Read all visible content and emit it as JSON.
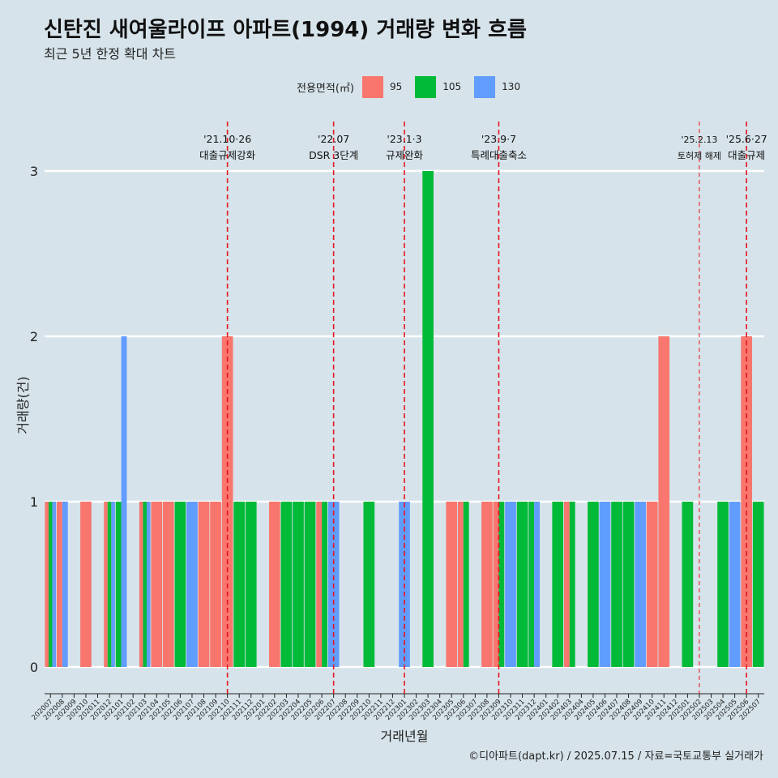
{
  "chart_data": {
    "type": "bar",
    "title": "신탄진 새여울라이프 아파트(1994) 거래량 변화 흐름",
    "subtitle": "최근 5년 한정 확대 차트",
    "xlabel": "거래년월",
    "ylabel": "거래량(건)",
    "caption": "©디아파트(dapt.kr) / 2025.07.15 / 자료=국토교통부 실거래가",
    "legend_title": "전용면적(㎡)",
    "legend_position": "top",
    "grid": true,
    "ylim": [
      0,
      3
    ],
    "yticks": [
      0,
      1,
      2,
      3
    ],
    "categories": [
      "202007",
      "202008",
      "202009",
      "202010",
      "202011",
      "202012",
      "202101",
      "202102",
      "202103",
      "202104",
      "202105",
      "202106",
      "202107",
      "202108",
      "202109",
      "202110",
      "202111",
      "202112",
      "202201",
      "202202",
      "202203",
      "202204",
      "202205",
      "202206",
      "202207",
      "202208",
      "202209",
      "202210",
      "202211",
      "202212",
      "202301",
      "202302",
      "202303",
      "202304",
      "202305",
      "202306",
      "202307",
      "202308",
      "202309",
      "202310",
      "202311",
      "202312",
      "202401",
      "202402",
      "202403",
      "202404",
      "202405",
      "202406",
      "202407",
      "202408",
      "202409",
      "202410",
      "202411",
      "202412",
      "202501",
      "202502",
      "202503",
      "202504",
      "202505",
      "202506",
      "202507"
    ],
    "series": [
      {
        "name": "95",
        "color": "#F8766D",
        "values": [
          1,
          1,
          0,
          1,
          0,
          1,
          0,
          0,
          1,
          1,
          1,
          0,
          0,
          1,
          1,
          2,
          0,
          0,
          0,
          1,
          0,
          0,
          0,
          1,
          0,
          0,
          0,
          0,
          0,
          0,
          0,
          0,
          0,
          0,
          1,
          1,
          0,
          1,
          1,
          0,
          0,
          0,
          0,
          0,
          1,
          0,
          0,
          0,
          0,
          0,
          0,
          1,
          2,
          0,
          0,
          0,
          0,
          0,
          0,
          2,
          0
        ]
      },
      {
        "name": "105",
        "color": "#00BA38",
        "values": [
          1,
          0,
          0,
          0,
          0,
          1,
          1,
          0,
          1,
          0,
          0,
          1,
          0,
          0,
          0,
          0,
          1,
          1,
          0,
          0,
          1,
          1,
          1,
          1,
          0,
          0,
          0,
          1,
          0,
          0,
          0,
          0,
          3,
          0,
          0,
          1,
          0,
          0,
          1,
          0,
          1,
          1,
          0,
          1,
          1,
          0,
          1,
          0,
          1,
          1,
          0,
          0,
          0,
          0,
          1,
          0,
          0,
          1,
          0,
          0,
          1
        ]
      },
      {
        "name": "130",
        "color": "#619CFF",
        "values": [
          1,
          1,
          0,
          0,
          0,
          1,
          2,
          0,
          1,
          0,
          0,
          0,
          1,
          0,
          0,
          0,
          0,
          0,
          0,
          0,
          0,
          0,
          0,
          0,
          1,
          0,
          0,
          0,
          0,
          0,
          1,
          0,
          0,
          0,
          0,
          0,
          0,
          0,
          0,
          1,
          0,
          1,
          0,
          0,
          0,
          0,
          0,
          1,
          0,
          0,
          1,
          0,
          0,
          0,
          0,
          0,
          0,
          0,
          1,
          0,
          0
        ]
      }
    ],
    "annotations": [
      {
        "x": "202110",
        "label1": "'21.10·26",
        "label2": "대출규제강화"
      },
      {
        "x": "202207",
        "label1": "'22.07",
        "label2": "DSR 3단계"
      },
      {
        "x": "202301",
        "label1": "'23.1·3",
        "label2": "규제완화"
      },
      {
        "x": "202309",
        "label1": "'23.9·7",
        "label2": "특례대출축소"
      },
      {
        "x": "202502",
        "label1": "'25.2.13",
        "label2": "토허제 해제"
      },
      {
        "x": "202506",
        "label1": "'25.6·27",
        "label2": "대출규제"
      }
    ]
  }
}
